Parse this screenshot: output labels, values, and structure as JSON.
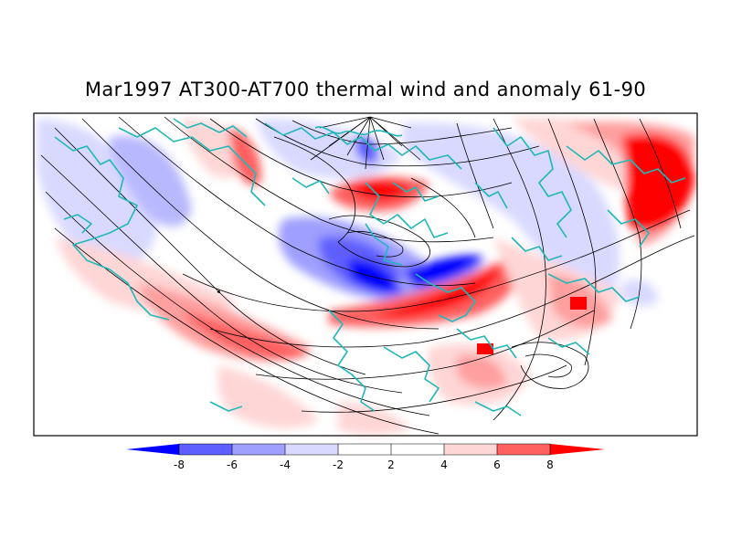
{
  "title": "Mar1997 AT300-AT700 thermal wind and anomaly 61-90",
  "colorbar": {
    "labels": [
      "-8",
      "-6",
      "-4",
      "-2",
      "2",
      "4",
      "6",
      "8"
    ],
    "colors": [
      "#0000ff",
      "#5f5fff",
      "#9f9fff",
      "#d9d9ff",
      "#ffffff",
      "#ffd6d6",
      "#ff9f9f",
      "#ff6060",
      "#ff0000"
    ]
  },
  "layers": {
    "anomaly_fill": "shaded thermal wind anomaly",
    "streamlines": "thermal wind streamlines",
    "coastlines": "continent outlines"
  },
  "palette": {
    "coast": "#20b8b8",
    "frame": "#000000"
  }
}
